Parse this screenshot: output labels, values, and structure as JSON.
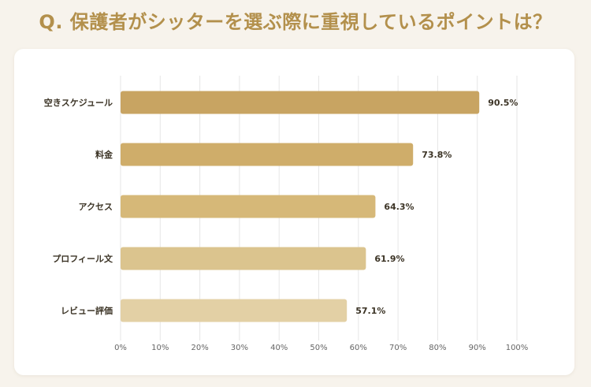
{
  "page": {
    "title": "Q. 保護者がシッターを選ぶ際に重視しているポイントは？"
  },
  "colors": {
    "title": "#b3904c",
    "background": "#f7f3ec",
    "card": "#ffffff",
    "grid": "#e6e6e6",
    "label": "#3c3426",
    "bars": [
      "#c8a462",
      "#cfad6a",
      "#d6b878",
      "#dbc48e",
      "#e3d0a5"
    ]
  },
  "chart_data": {
    "type": "bar",
    "orientation": "horizontal",
    "categories": [
      "空きスケジュール",
      "料金",
      "アクセス",
      "プロフィール文",
      "レビュー評価"
    ],
    "values": [
      90.5,
      73.8,
      64.3,
      61.9,
      57.1
    ],
    "value_labels": [
      "90.5%",
      "73.8%",
      "64.3%",
      "61.9%",
      "57.1%"
    ],
    "xlim": [
      0,
      100
    ],
    "x_ticks": [
      "0%",
      "10%",
      "20%",
      "30%",
      "40%",
      "50%",
      "60%",
      "70%",
      "80%",
      "90%",
      "100%"
    ],
    "grid": true,
    "legend": "none"
  }
}
